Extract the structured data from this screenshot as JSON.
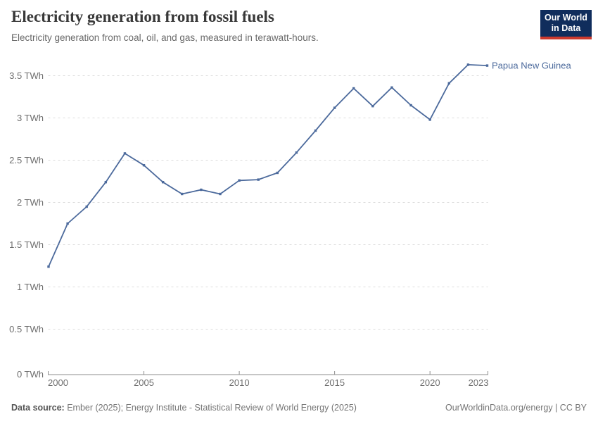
{
  "header": {
    "title": "Electricity generation from fossil fuels",
    "subtitle": "Electricity generation from coal, oil, and gas, measured in terawatt-hours."
  },
  "logo": {
    "line1": "Our World",
    "line2": "in Data"
  },
  "chart_data": {
    "type": "line",
    "title": "Electricity generation from fossil fuels",
    "unit": "TWh",
    "x": [
      2000,
      2001,
      2002,
      2003,
      2004,
      2005,
      2006,
      2007,
      2008,
      2009,
      2010,
      2011,
      2012,
      2013,
      2014,
      2015,
      2016,
      2017,
      2018,
      2019,
      2020,
      2021,
      2022,
      2023
    ],
    "series": [
      {
        "name": "Papua New Guinea",
        "values": [
          1.24,
          1.75,
          1.95,
          2.24,
          2.58,
          2.44,
          2.24,
          2.1,
          2.15,
          2.1,
          2.26,
          2.27,
          2.35,
          2.59,
          2.85,
          3.12,
          3.35,
          3.14,
          3.36,
          3.15,
          2.98,
          3.41,
          3.63,
          3.62
        ]
      }
    ],
    "x_ticks": [
      {
        "value": 2000,
        "label": "2000"
      },
      {
        "value": 2005,
        "label": "2005"
      },
      {
        "value": 2010,
        "label": "2010"
      },
      {
        "value": 2015,
        "label": "2015"
      },
      {
        "value": 2020,
        "label": "2020"
      },
      {
        "value": 2023,
        "label": "2023"
      }
    ],
    "y_ticks": [
      {
        "value": 0,
        "label": "0 TWh"
      },
      {
        "value": 0.5,
        "label": "0.5 TWh"
      },
      {
        "value": 1,
        "label": "1 TWh"
      },
      {
        "value": 1.5,
        "label": "1.5 TWh"
      },
      {
        "value": 2,
        "label": "2 TWh"
      },
      {
        "value": 2.5,
        "label": "2.5 TWh"
      },
      {
        "value": 3,
        "label": "3 TWh"
      },
      {
        "value": 3.5,
        "label": "3.5 TWh"
      }
    ],
    "xlim": [
      2000,
      2023
    ],
    "ylim": [
      0,
      3.5
    ],
    "grid": "horizontal-dashed",
    "legend_position": "end-of-line"
  },
  "colors": {
    "line": "#4c6a9c",
    "series_label": "#4c6a9c",
    "grid": "#dcdcdc",
    "axis": "#8c8c8c",
    "tick_text": "#6e6e6e",
    "logo_bg": "#102d5c",
    "logo_red": "#cc3a2e"
  },
  "footer": {
    "source_label": "Data source:",
    "source_text": " Ember (2025); Energy Institute - Statistical Review of World Energy (2025)",
    "link_text": "OurWorldinData.org/energy | CC BY"
  }
}
